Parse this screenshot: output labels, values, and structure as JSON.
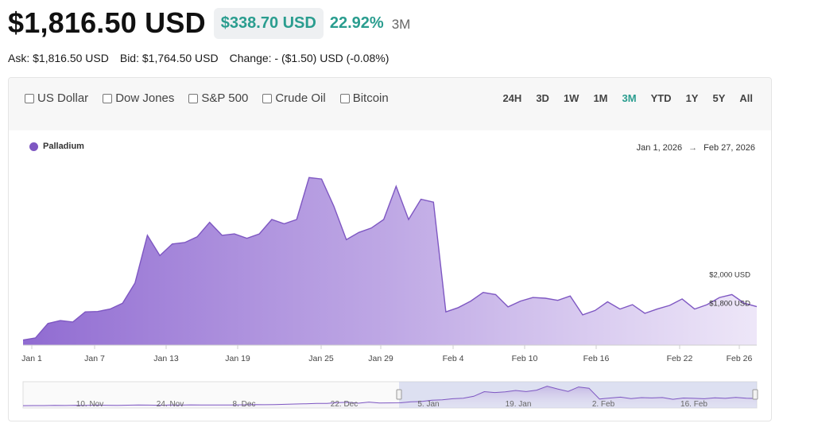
{
  "header": {
    "price": "$1,816.50 USD",
    "change_amount": "$338.70 USD",
    "change_percent": "22.92%",
    "range": "3M"
  },
  "quote": {
    "ask": "Ask: $1,816.50 USD",
    "bid": "Bid: $1,764.50 USD",
    "change": "Change: - ($1.50) USD (-0.08%)"
  },
  "compare": [
    "US Dollar",
    "Dow Jones",
    "S&P 500",
    "Crude Oil",
    "Bitcoin"
  ],
  "ranges": [
    "24H",
    "3D",
    "1W",
    "1M",
    "3M",
    "YTD",
    "1Y",
    "5Y",
    "All"
  ],
  "active_range": "3M",
  "legend": {
    "label": "Palladium",
    "color": "#7e57c2"
  },
  "date_range": {
    "from": "Jan 1, 2026",
    "arrow": "→",
    "to": "Feb 27, 2026"
  },
  "chart_data": {
    "type": "area",
    "title": "",
    "xlabel": "",
    "ylabel": "",
    "series": [
      {
        "name": "Palladium",
        "values": [
          1585,
          1600,
          1700,
          1720,
          1710,
          1780,
          1783,
          1800,
          1840,
          1980,
          2310,
          2170,
          2250,
          2260,
          2300,
          2400,
          2310,
          2320,
          2290,
          2320,
          2420,
          2390,
          2420,
          2710,
          2700,
          2510,
          2280,
          2330,
          2360,
          2420,
          2650,
          2420,
          2560,
          2540,
          1780,
          1810,
          1855,
          1915,
          1900,
          1815,
          1855,
          1880,
          1875,
          1860,
          1890,
          1760,
          1790,
          1850,
          1800,
          1830,
          1770,
          1800,
          1825,
          1870,
          1800,
          1830,
          1880,
          1900,
          1840,
          1816.5
        ]
      }
    ],
    "x_tick_labels": [
      "Jan 1",
      "Jan 7",
      "Jan 13",
      "Jan 19",
      "Jan 25",
      "Jan 29",
      "Feb 4",
      "Feb 10",
      "Feb 16",
      "Feb 22",
      "Feb 26"
    ],
    "y_tick_labels": [
      "$2,000 USD",
      "$1,800 USD"
    ],
    "navigator_labels": [
      "10. Nov",
      "24. Nov",
      "8. Dec",
      "22. Dec",
      "5. Jan",
      "19. Jan",
      "2. Feb",
      "16. Feb"
    ],
    "grid": false,
    "legend_position": "top-left"
  }
}
